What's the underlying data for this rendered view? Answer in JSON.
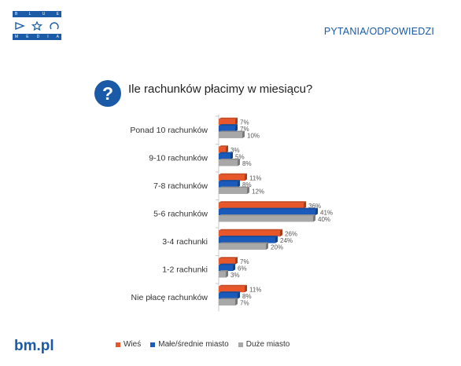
{
  "header": {
    "section_title": "PYTANIA/ODPOWIEDZI"
  },
  "logo": {
    "top_letters": [
      "B",
      "L",
      "U",
      "E"
    ],
    "bottom_letters": [
      "M",
      "E",
      "D",
      "I",
      "A"
    ]
  },
  "question": {
    "badge": "?",
    "text": "Ile rachunków płacimy w miesiącu?"
  },
  "footer": {
    "brand": "bm.pl"
  },
  "chart_data": {
    "type": "bar",
    "orientation": "horizontal",
    "categories": [
      "Ponad 10 rachunków",
      "9-10 rachunków",
      "7-8 rachunków",
      "5-6 rachunków",
      "3-4 rachunki",
      "1-2 rachunki",
      "Nie płacę rachunków"
    ],
    "series": [
      {
        "name": "Wieś",
        "color": "#e8572a",
        "values": [
          7,
          3,
          11,
          36,
          26,
          7,
          11
        ]
      },
      {
        "name": "Małe/średnie miasto",
        "color": "#1a5aba",
        "values": [
          7,
          5,
          8,
          41,
          24,
          6,
          8
        ]
      },
      {
        "name": "Duże miasto",
        "color": "#a8a8a8",
        "values": [
          10,
          8,
          12,
          40,
          20,
          3,
          7
        ]
      }
    ],
    "value_suffix": "%",
    "legend_position": "bottom",
    "grid": false,
    "xlim": [
      0,
      45
    ]
  }
}
